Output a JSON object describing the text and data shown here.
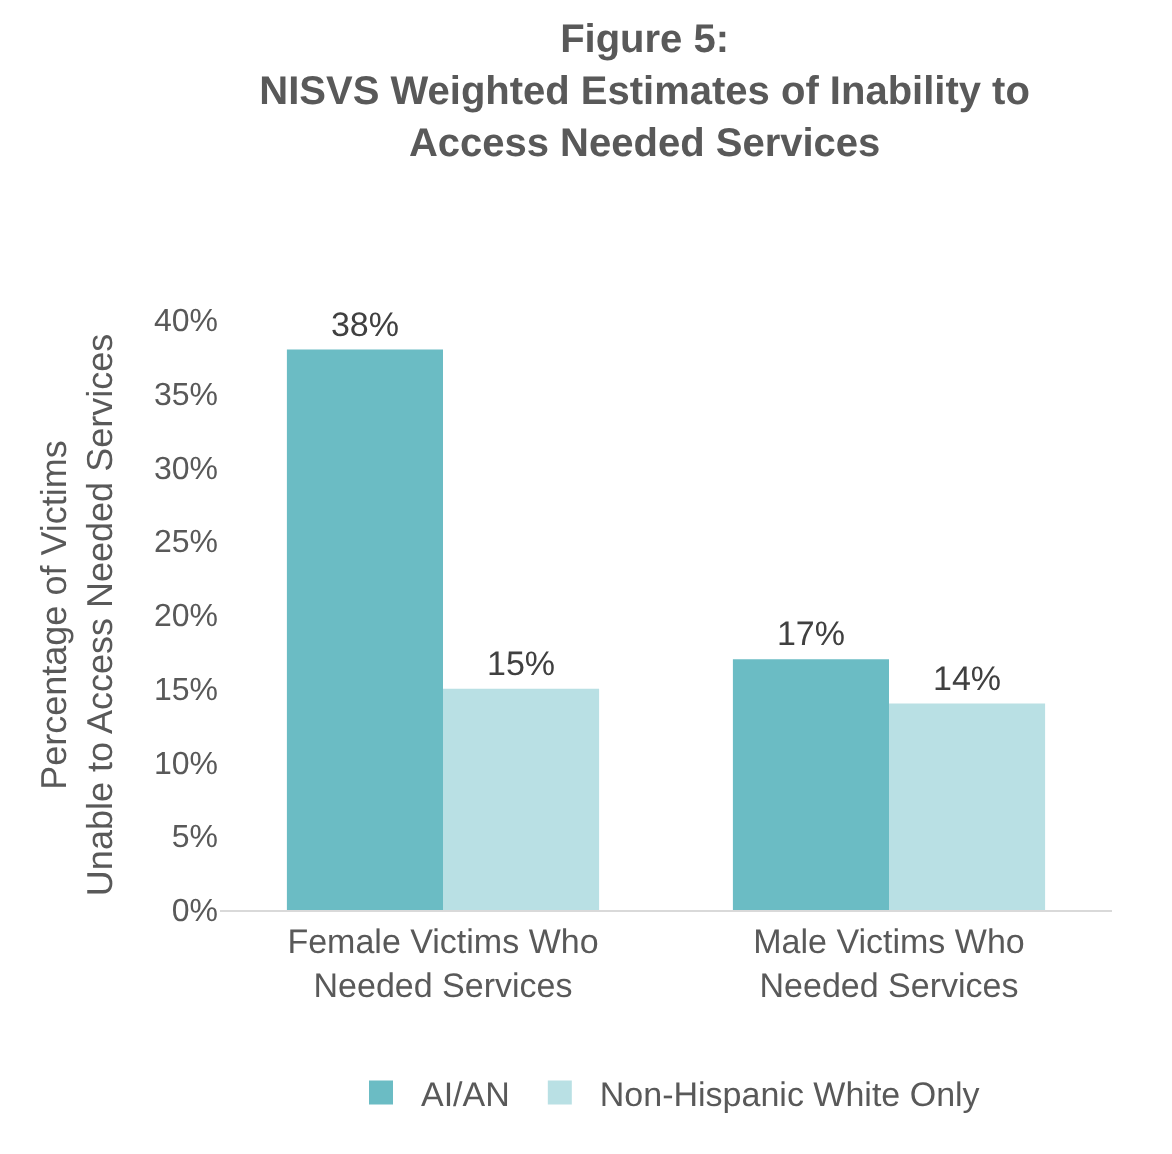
{
  "chart_data": {
    "type": "bar",
    "title": "Figure 5:\nNISVS Weighted Estimates of Inability to\nAccess Needed Services",
    "ylabel": "Percentage of Victims\nUnable to Access Needed Services",
    "categories": [
      "Female Victims Who\nNeeded Services",
      "Male Victims Who\nNeeded Services"
    ],
    "series": [
      {
        "name": "AI/AN",
        "color": "#6bbcc4",
        "values": [
          38,
          17
        ],
        "value_labels": [
          "38%",
          "17%"
        ]
      },
      {
        "name": "Non-Hispanic White Only",
        "color": "#b9e0e4",
        "values": [
          15,
          14
        ],
        "value_labels": [
          "15%",
          "14%"
        ]
      }
    ],
    "ylim": [
      0,
      40
    ],
    "yticks": [
      {
        "value": 0,
        "label": "0%"
      },
      {
        "value": 5,
        "label": "5%"
      },
      {
        "value": 10,
        "label": "10%"
      },
      {
        "value": 15,
        "label": "15%"
      },
      {
        "value": 20,
        "label": "20%"
      },
      {
        "value": 25,
        "label": "25%"
      },
      {
        "value": 30,
        "label": "30%"
      },
      {
        "value": 35,
        "label": "35%"
      },
      {
        "value": 40,
        "label": "40%"
      }
    ],
    "legend": "bottom"
  }
}
